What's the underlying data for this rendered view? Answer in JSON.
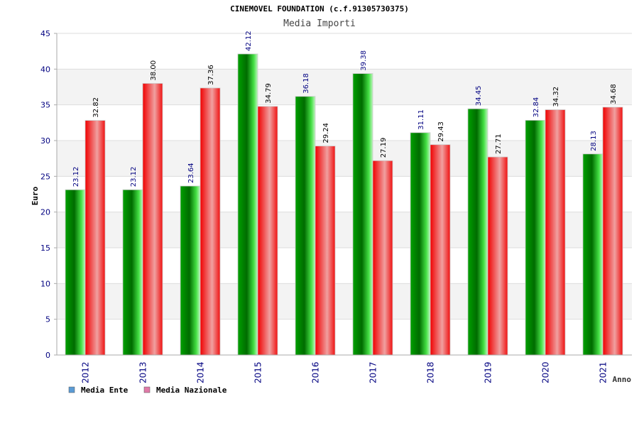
{
  "chart_data": {
    "type": "bar",
    "title": "CINEMOVEL FOUNDATION (c.f.91305730375)",
    "subtitle": "Media Importi",
    "xlabel": "Anno",
    "ylabel": "Euro",
    "ylim": [
      0,
      45
    ],
    "yticks": [
      "0",
      "5",
      "10",
      "15",
      "20",
      "25",
      "30",
      "35",
      "40",
      "45"
    ],
    "categories": [
      "2012",
      "2013",
      "2014",
      "2015",
      "2016",
      "2017",
      "2018",
      "2019",
      "2020",
      "2021"
    ],
    "series": [
      {
        "name": "Media Ente",
        "values": [
          23.12,
          23.12,
          23.64,
          42.12,
          36.18,
          39.38,
          31.11,
          34.45,
          32.84,
          28.13
        ],
        "labels": [
          "23.12",
          "23.12",
          "23.64",
          "42.12",
          "36.18",
          "39.38",
          "31.11",
          "34.45",
          "32.84",
          "28.13"
        ],
        "color": "#00b400",
        "legend_color": "#5b9bd5"
      },
      {
        "name": "Media Nazionale",
        "values": [
          32.82,
          38.0,
          37.36,
          34.79,
          29.24,
          27.19,
          29.43,
          27.71,
          34.32,
          34.68
        ],
        "labels": [
          "32.82",
          "38.00",
          "37.36",
          "34.79",
          "29.24",
          "27.19",
          "29.43",
          "27.71",
          "34.32",
          "34.68"
        ],
        "color": "#ee0000",
        "legend_color": "#e07aa8"
      }
    ],
    "grid": true,
    "legend": "bottom-left"
  }
}
